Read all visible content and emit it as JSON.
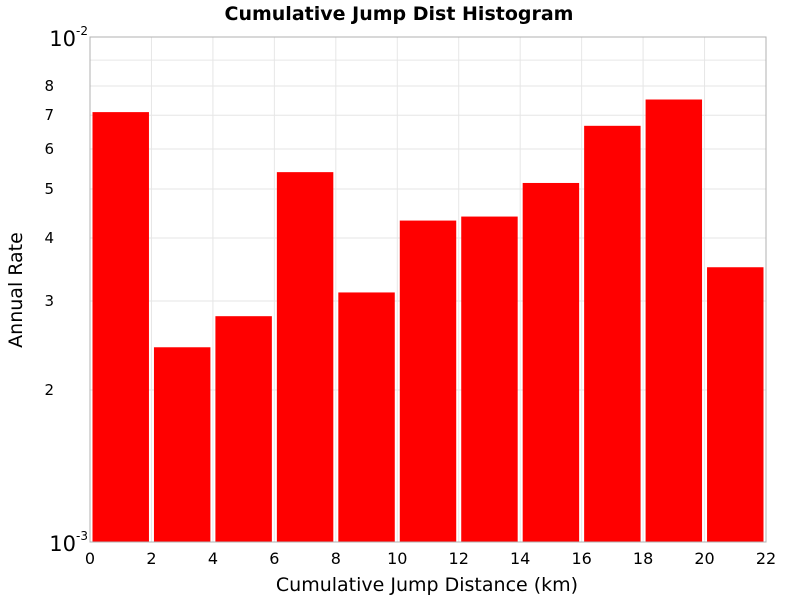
{
  "chart_data": {
    "type": "bar",
    "title": "Cumulative Jump Dist Histogram",
    "xlabel": "Cumulative Jump Distance (km)",
    "ylabel": "Annual Rate",
    "y_scale": "log",
    "xlim": [
      0,
      22
    ],
    "ylim": [
      0.001,
      0.01
    ],
    "x_ticks": [
      "0",
      "2",
      "4",
      "6",
      "8",
      "10",
      "12",
      "14",
      "16",
      "18",
      "20",
      "22"
    ],
    "y_major_ticks": [
      {
        "base": "10",
        "exp": "-3",
        "value": 0.001
      },
      {
        "base": "10",
        "exp": "-2",
        "value": 0.01
      }
    ],
    "y_minor_ticks": [
      {
        "label": "2",
        "value": 0.002
      },
      {
        "label": "3",
        "value": 0.003
      },
      {
        "label": "4",
        "value": 0.004
      },
      {
        "label": "5",
        "value": 0.005
      },
      {
        "label": "6",
        "value": 0.006
      },
      {
        "label": "7",
        "value": 0.007
      },
      {
        "label": "8",
        "value": 0.008
      }
    ],
    "bar_color": "#ff0000",
    "grid": true,
    "bins": [
      {
        "x0": 0,
        "x1": 2,
        "value": 0.0071
      },
      {
        "x0": 2,
        "x1": 4,
        "value": 0.00243
      },
      {
        "x0": 4,
        "x1": 6,
        "value": 0.0028
      },
      {
        "x0": 6,
        "x1": 8,
        "value": 0.0054
      },
      {
        "x0": 8,
        "x1": 10,
        "value": 0.00312
      },
      {
        "x0": 10,
        "x1": 12,
        "value": 0.00433
      },
      {
        "x0": 12,
        "x1": 14,
        "value": 0.00441
      },
      {
        "x0": 14,
        "x1": 16,
        "value": 0.00514
      },
      {
        "x0": 16,
        "x1": 18,
        "value": 0.00667
      },
      {
        "x0": 18,
        "x1": 20,
        "value": 0.00752
      },
      {
        "x0": 20,
        "x1": 22,
        "value": 0.0035
      }
    ]
  }
}
